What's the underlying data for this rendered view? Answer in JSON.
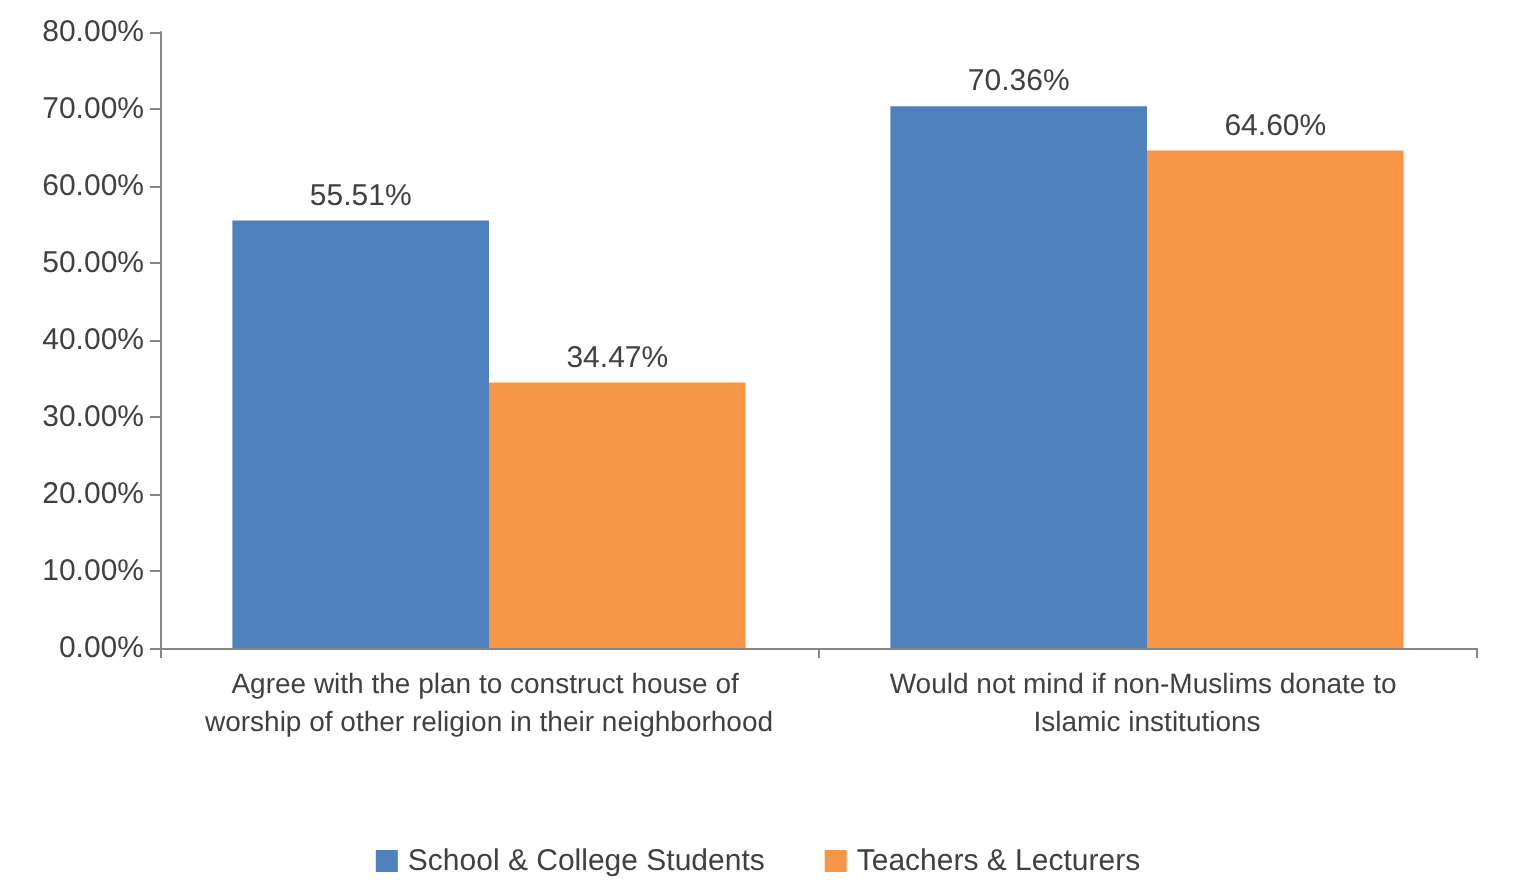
{
  "chart_data": {
    "type": "bar",
    "categories": [
      "Agree with the plan to construct house of worship of other religion in their neighborhood",
      "Would not mind if non-Muslims donate to Islamic institutions"
    ],
    "series": [
      {
        "name": "School & College Students",
        "color": "#4f81bd",
        "values": [
          55.51,
          70.36
        ],
        "value_labels": [
          "55.51%",
          "70.36%"
        ]
      },
      {
        "name": "Teachers & Lecturers",
        "color": "#f79646",
        "values": [
          34.47,
          64.6
        ],
        "value_labels": [
          "34.47%",
          "64.60%"
        ]
      }
    ],
    "ylim": [
      0,
      80
    ],
    "yticks": [
      {
        "value": 0,
        "label": "0.00%"
      },
      {
        "value": 10,
        "label": "10.00%"
      },
      {
        "value": 20,
        "label": "20.00%"
      },
      {
        "value": 30,
        "label": "30.00%"
      },
      {
        "value": 40,
        "label": "40.00%"
      },
      {
        "value": 50,
        "label": "50.00%"
      },
      {
        "value": 60,
        "label": "60.00%"
      },
      {
        "value": 70,
        "label": "70.00%"
      },
      {
        "value": 80,
        "label": "80.00%"
      }
    ],
    "grid": false,
    "legend": "bottom"
  }
}
